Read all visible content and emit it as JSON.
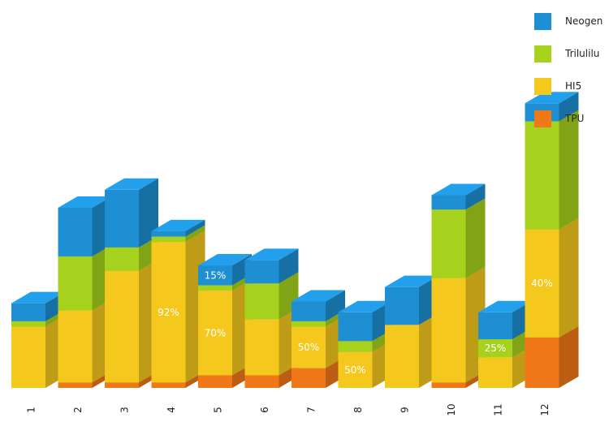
{
  "chart_data": {
    "type": "bar",
    "stacked": true,
    "three_d": true,
    "categories": [
      "1",
      "2",
      "3",
      "4",
      "5",
      "6",
      "7",
      "8",
      "9",
      "10",
      "11",
      "12"
    ],
    "series": [
      {
        "name": "TPU",
        "color": "#f07818",
        "values": [
          0,
          3,
          3,
          3,
          7,
          7,
          11,
          0,
          0,
          3,
          0,
          28
        ]
      },
      {
        "name": "HI5",
        "color": "#f5c81e",
        "values": [
          34,
          40,
          62,
          78,
          47,
          31,
          23,
          20,
          35,
          58,
          17,
          60
        ]
      },
      {
        "name": "Trilulilu",
        "color": "#a6d21e",
        "values": [
          3,
          30,
          13,
          3,
          3,
          20,
          3,
          6,
          0,
          38,
          10,
          60
        ]
      },
      {
        "name": "Neogen",
        "color": "#1e8fd2",
        "values": [
          10,
          27,
          32,
          3,
          11,
          13,
          11,
          16,
          21,
          8,
          15,
          10
        ]
      }
    ],
    "data_labels": [
      {
        "category": "4",
        "series": "HI5",
        "text": "92%"
      },
      {
        "category": "5",
        "series": "HI5",
        "text": "70%"
      },
      {
        "category": "5",
        "series": "Neogen",
        "text": "15%"
      },
      {
        "category": "7",
        "series": "HI5",
        "text": "50%"
      },
      {
        "category": "8",
        "series": "HI5",
        "text": "50%"
      },
      {
        "category": "11",
        "series": "Trilulilu",
        "text": "25%"
      },
      {
        "category": "12",
        "series": "HI5",
        "text": "40%"
      }
    ],
    "legend_position": "top-right",
    "axes_visible": false,
    "grid": false,
    "title": "",
    "xlabel": "",
    "ylabel": ""
  },
  "legend": {
    "items": [
      {
        "label": "Neogen",
        "color": "#1e8fd2"
      },
      {
        "label": "Trilulilu",
        "color": "#a6d21e"
      },
      {
        "label": "HI5",
        "color": "#f5c81e"
      },
      {
        "label": "TPU",
        "color": "#f07818"
      }
    ]
  }
}
